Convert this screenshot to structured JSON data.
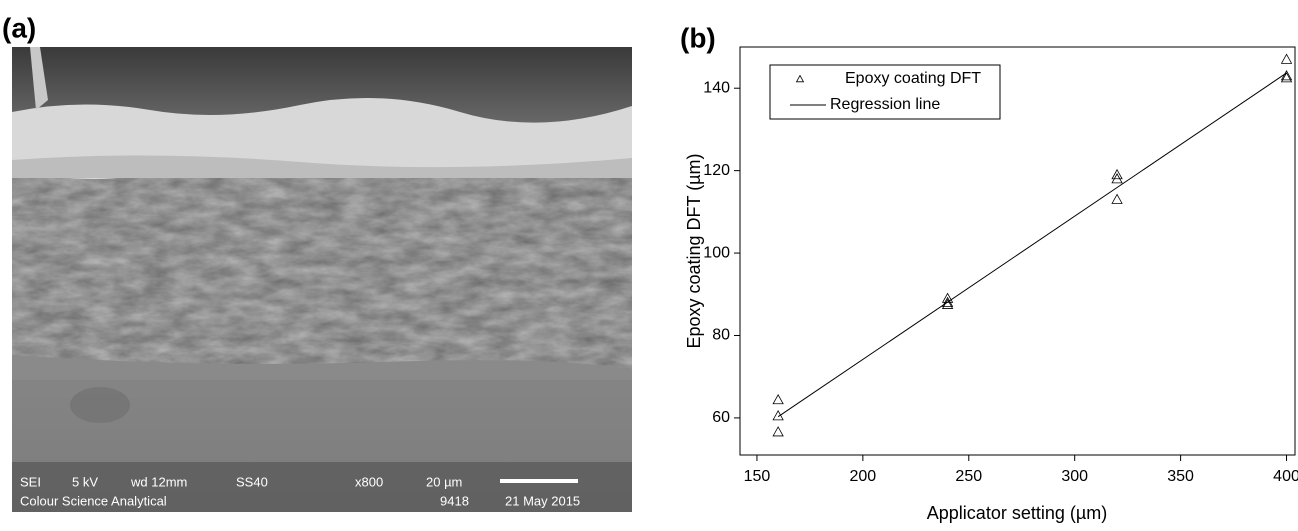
{
  "panel_a": {
    "label": "(a)",
    "info_row_1": [
      "SEI",
      "5 kV",
      "wd 12mm",
      "SS40",
      "x800",
      "20 µm"
    ],
    "info_row_2": [
      "Colour Science Analytical",
      "9418",
      "21 May 2015"
    ]
  },
  "panel_b_label": "(b)",
  "chart_data": {
    "type": "scatter",
    "x_label": "Applicator setting (µm)",
    "y_label": "Epoxy coating DFT (µm)",
    "xlim": [
      142,
      404
    ],
    "ylim": [
      51,
      150
    ],
    "xticks": [
      150,
      200,
      250,
      300,
      350,
      400
    ],
    "yticks": [
      60,
      80,
      100,
      120,
      140
    ],
    "legend": "top-left",
    "series": [
      {
        "name": "Epoxy coating DFT",
        "type": "scatter",
        "color": "#000000",
        "x": [
          160,
          160,
          160,
          240,
          240,
          240,
          320,
          320,
          320,
          400,
          400,
          400
        ],
        "values": [
          64.4,
          60.5,
          56.6,
          89,
          88,
          87.5,
          119,
          118,
          113,
          147,
          143,
          142.5
        ]
      },
      {
        "name": "Regression line",
        "type": "line",
        "color": "#000000",
        "x": [
          160,
          400
        ],
        "values": [
          60.3,
          143.7
        ]
      }
    ]
  }
}
